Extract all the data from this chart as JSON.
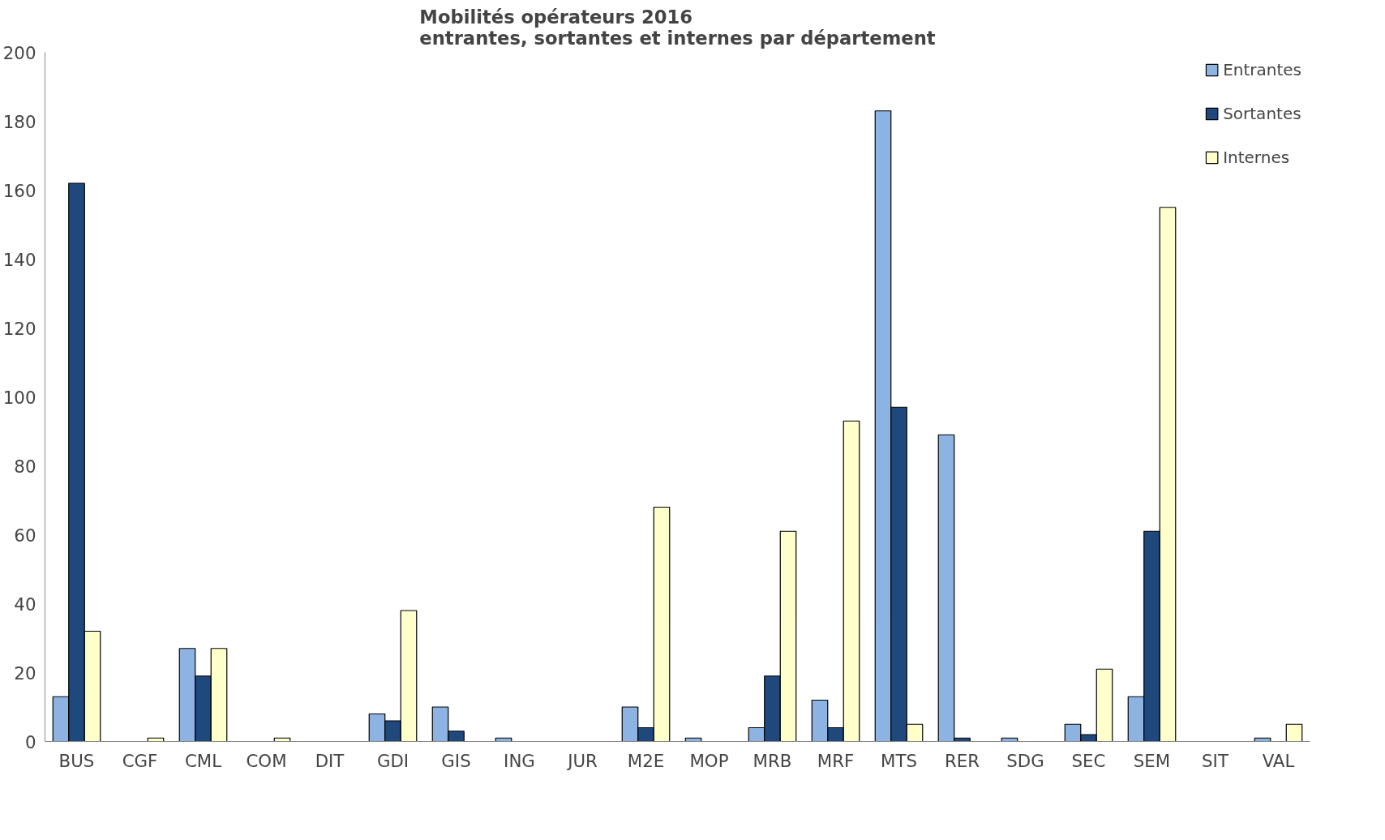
{
  "chart_data": {
    "type": "bar",
    "title": "Mobilités opérateurs 2016\nentrantes, sortantes et internes par département",
    "categories": [
      "BUS",
      "CGF",
      "CML",
      "COM",
      "DIT",
      "GDI",
      "GIS",
      "ING",
      "JUR",
      "M2E",
      "MOP",
      "MRB",
      "MRF",
      "MTS",
      "RER",
      "SDG",
      "SEC",
      "SEM",
      "SIT",
      "VAL"
    ],
    "series": [
      {
        "name": "Entrantes",
        "color": "#8db3e2",
        "values": [
          13,
          0,
          27,
          0,
          0,
          8,
          10,
          1,
          0,
          10,
          1,
          4,
          12,
          183,
          89,
          1,
          5,
          13,
          0,
          1
        ]
      },
      {
        "name": "Sortantes",
        "color": "#1f497d",
        "values": [
          162,
          0,
          19,
          0,
          0,
          6,
          3,
          0,
          0,
          4,
          0,
          19,
          4,
          97,
          1,
          0,
          2,
          61,
          0,
          0
        ]
      },
      {
        "name": "Internes",
        "color": "#ffffcc",
        "values": [
          32,
          1,
          27,
          1,
          0,
          38,
          0,
          0,
          0,
          68,
          0,
          61,
          93,
          5,
          0,
          0,
          21,
          155,
          0,
          5
        ]
      }
    ],
    "ylim": [
      0,
      200
    ],
    "yticks": [
      0,
      20,
      40,
      60,
      80,
      100,
      120,
      140,
      160,
      180,
      200
    ],
    "grid": false,
    "legend": "top right"
  }
}
